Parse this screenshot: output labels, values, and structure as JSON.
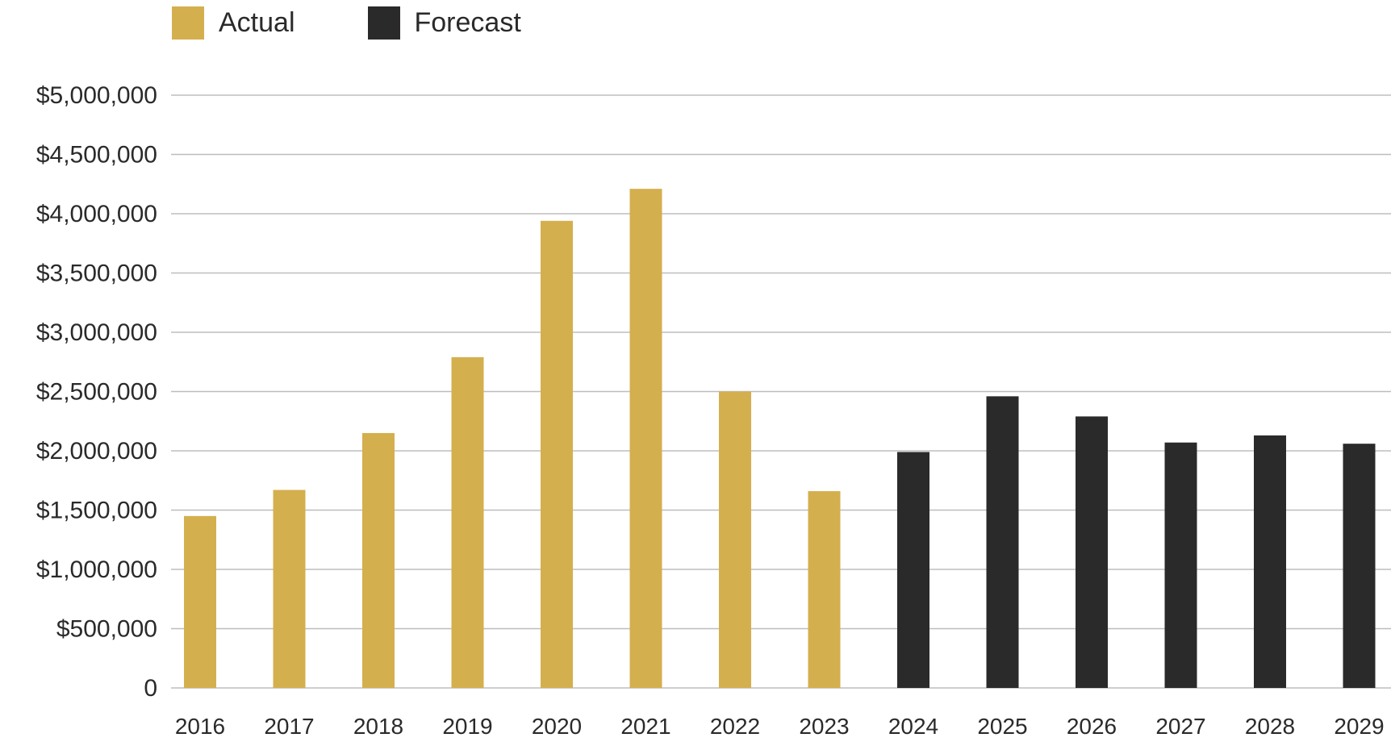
{
  "chart_data": {
    "type": "bar",
    "categories": [
      "2016",
      "2017",
      "2018",
      "2019",
      "2020",
      "2021",
      "2022",
      "2023",
      "2024",
      "2025",
      "2026",
      "2027",
      "2028",
      "2029"
    ],
    "series": [
      {
        "name": "Actual",
        "color": "#d4af4e",
        "values": [
          1450000,
          1670000,
          2150000,
          2790000,
          3940000,
          4210000,
          2500000,
          1660000,
          null,
          null,
          null,
          null,
          null,
          null
        ]
      },
      {
        "name": "Forecast",
        "color": "#2b2a2a",
        "values": [
          null,
          null,
          null,
          null,
          null,
          null,
          null,
          null,
          1990000,
          2460000,
          2290000,
          2070000,
          2130000,
          2060000
        ]
      }
    ],
    "ylim": [
      0,
      5000000
    ],
    "yticks": [
      0,
      500000,
      1000000,
      1500000,
      2000000,
      2500000,
      3000000,
      3500000,
      4000000,
      4500000,
      5000000
    ],
    "ytick_labels": [
      "0",
      "$500,000",
      "$1,000,000",
      "$1,500,000",
      "$2,000,000",
      "$2,500,000",
      "$3,000,000",
      "$3,500,000",
      "$4,000,000",
      "$4,500,000",
      "$5,000,000"
    ],
    "grid": true,
    "legend_position": "top-left",
    "title": "",
    "xlabel": "",
    "ylabel": ""
  }
}
